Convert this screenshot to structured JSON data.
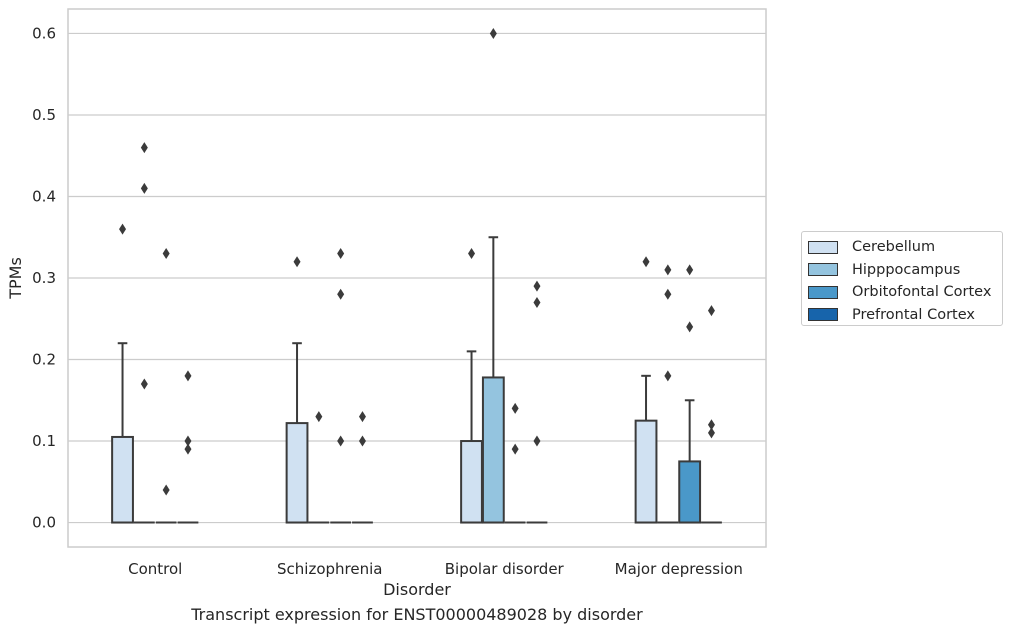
{
  "chart_data": {
    "type": "box",
    "xlabel": "Disorder",
    "ylabel": "TPMs",
    "caption": "Transcript expression for ENST00000489028 by disorder",
    "ylim": [
      -0.03,
      0.63
    ],
    "yticks": [
      0.0,
      0.1,
      0.2,
      0.3,
      0.4,
      0.5,
      0.6
    ],
    "ytick_labels": [
      "0.0",
      "0.1",
      "0.2",
      "0.3",
      "0.4",
      "0.5",
      "0.6"
    ],
    "grid": "horizontal",
    "legend_position": "right",
    "categories": [
      "Control",
      "Schizophrenia",
      "Bipolar disorder",
      "Major depression"
    ],
    "series": [
      {
        "name": "Cerebellum",
        "color": "#d0e1f2",
        "boxes": [
          {
            "q1": 0,
            "median": 0,
            "q3": 0.105,
            "whisker_low": 0,
            "whisker_high": 0.22,
            "outliers": [
              0.36
            ]
          },
          {
            "q1": 0,
            "median": 0,
            "q3": 0.122,
            "whisker_low": 0,
            "whisker_high": 0.22,
            "outliers": [
              0.32
            ]
          },
          {
            "q1": 0,
            "median": 0,
            "q3": 0.1,
            "whisker_low": 0,
            "whisker_high": 0.21,
            "outliers": [
              0.33
            ]
          },
          {
            "q1": 0,
            "median": 0,
            "q3": 0.125,
            "whisker_low": 0,
            "whisker_high": 0.18,
            "outliers": [
              0.32
            ]
          }
        ]
      },
      {
        "name": "Hipppocampus",
        "color": "#94c4df",
        "boxes": [
          {
            "q1": 0,
            "median": 0,
            "q3": 0,
            "whisker_low": 0,
            "whisker_high": 0,
            "outliers": [
              0.17,
              0.41,
              0.46
            ]
          },
          {
            "q1": 0,
            "median": 0,
            "q3": 0,
            "whisker_low": 0,
            "whisker_high": 0,
            "outliers": [
              0.13
            ]
          },
          {
            "q1": 0,
            "median": 0,
            "q3": 0.178,
            "whisker_low": 0,
            "whisker_high": 0.35,
            "outliers": [
              0.6
            ]
          },
          {
            "q1": 0,
            "median": 0,
            "q3": 0,
            "whisker_low": 0,
            "whisker_high": 0,
            "outliers": [
              0.18,
              0.28,
              0.31
            ]
          }
        ]
      },
      {
        "name": "Orbitofontal Cortex",
        "color": "#4a98c9",
        "boxes": [
          {
            "q1": 0,
            "median": 0,
            "q3": 0,
            "whisker_low": 0,
            "whisker_high": 0,
            "outliers": [
              0.04,
              0.33
            ]
          },
          {
            "q1": 0,
            "median": 0,
            "q3": 0,
            "whisker_low": 0,
            "whisker_high": 0,
            "outliers": [
              0.1,
              0.28,
              0.33
            ]
          },
          {
            "q1": 0,
            "median": 0,
            "q3": 0,
            "whisker_low": 0,
            "whisker_high": 0,
            "outliers": [
              0.09,
              0.14
            ]
          },
          {
            "q1": 0,
            "median": 0,
            "q3": 0.075,
            "whisker_low": 0,
            "whisker_high": 0.15,
            "outliers": [
              0.24,
              0.31
            ]
          }
        ]
      },
      {
        "name": "Prefrontal Cortex",
        "color": "#1764ab",
        "boxes": [
          {
            "q1": 0,
            "median": 0,
            "q3": 0,
            "whisker_low": 0,
            "whisker_high": 0,
            "outliers": [
              0.09,
              0.1,
              0.18
            ]
          },
          {
            "q1": 0,
            "median": 0,
            "q3": 0,
            "whisker_low": 0,
            "whisker_high": 0,
            "outliers": [
              0.1,
              0.13
            ]
          },
          {
            "q1": 0,
            "median": 0,
            "q3": 0,
            "whisker_low": 0,
            "whisker_high": 0,
            "outliers": [
              0.1,
              0.27,
              0.29
            ]
          },
          {
            "q1": 0,
            "median": 0,
            "q3": 0,
            "whisker_low": 0,
            "whisker_high": 0,
            "outliers": [
              0.11,
              0.12,
              0.26
            ]
          }
        ]
      }
    ]
  }
}
